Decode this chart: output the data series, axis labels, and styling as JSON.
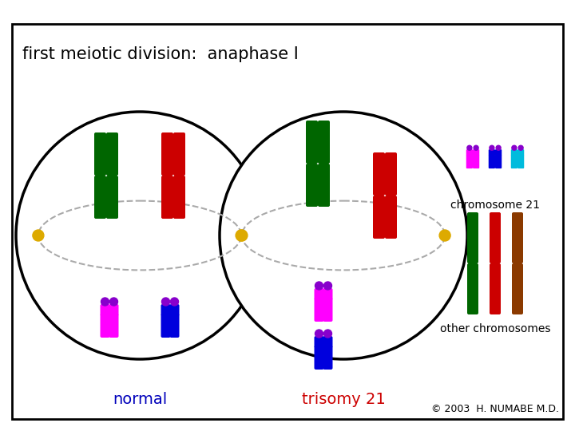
{
  "title": "first meiotic division:  anaphase I",
  "title_color": "#000000",
  "title_fontsize": 15,
  "bg_color": "#ffffff",
  "border_color": "#000000",
  "label_normal": "normal",
  "label_trisomy": "trisomy 21",
  "label_normal_color": "#0000bb",
  "label_trisomy_color": "#cc0000",
  "label_fontsize": 14,
  "copyright": "© 2003  H. NUMABE M.D.",
  "copyright_fontsize": 9,
  "spindle_color": "#aaaaaa",
  "pole_color": "#ddaa00",
  "chr_green": "#006600",
  "chr_red": "#cc0000",
  "chr_magenta": "#ff00ff",
  "chr_blue": "#0000dd",
  "chr_cyan": "#00bbdd",
  "chr_purple": "#8800cc",
  "chr_brown": "#8B3A00",
  "legend_chr21_label": "chromosome 21",
  "legend_other_label": "other chromosomes",
  "legend_fontsize": 10
}
